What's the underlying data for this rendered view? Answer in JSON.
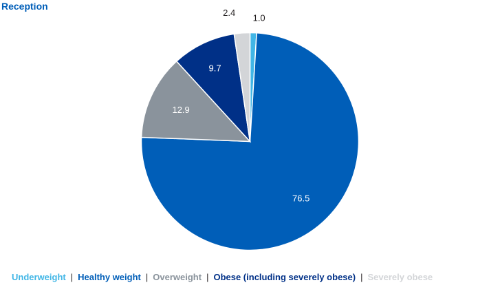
{
  "chart_data": {
    "type": "pie",
    "title": "Reception",
    "slices": [
      {
        "label": "Underweight",
        "value": 1.0,
        "color": "#41B6E6",
        "data_label": "1.0",
        "label_color": "#231F20"
      },
      {
        "label": "Healthy weight",
        "value": 76.5,
        "color": "#005EB8",
        "data_label": "76.5",
        "label_color": "#FFFFFF"
      },
      {
        "label": "Overweight",
        "value": 12.9,
        "color": "#8A939C",
        "data_label": "12.9",
        "label_color": "#FFFFFF"
      },
      {
        "label": "Obese (including severely obese)",
        "value": 9.7,
        "color": "#003087",
        "data_label": "9.7",
        "label_color": "#FFFFFF"
      },
      {
        "label": "Severely obese",
        "value": 2.4,
        "color": "#D3D5D8",
        "data_label": "2.4",
        "label_color": "#231F20"
      }
    ],
    "legend_position": "bottom",
    "legend_separator": "|"
  }
}
